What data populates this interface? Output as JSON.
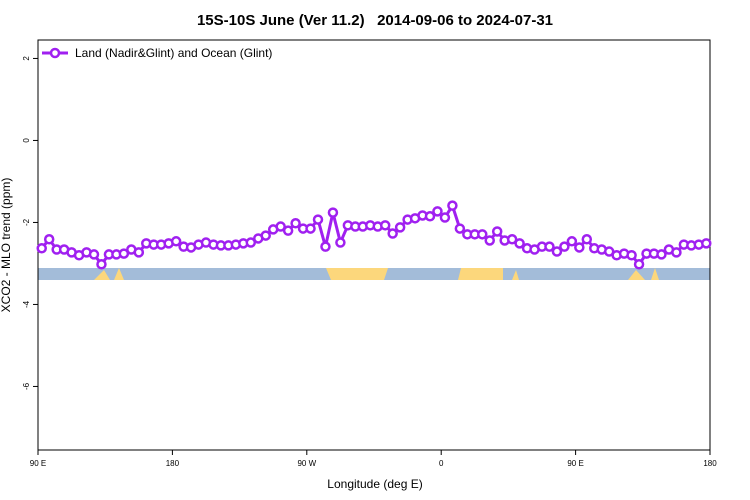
{
  "chart_data": {
    "type": "line",
    "title": "15S-10S June (Ver 11.2)   2014-09-06 to 2024-07-31",
    "xlabel": "Longitude (deg E)",
    "ylabel": "XCO2 - MLO trend (ppm)",
    "xlim": [
      90,
      540
    ],
    "ylim": [
      -7.55,
      2.45
    ],
    "xticks": [
      {
        "value": 90,
        "label": "90 E"
      },
      180,
      {
        "value": 270,
        "label": "90 W"
      },
      {
        "value": 360,
        "label": "0"
      },
      {
        "value": 450,
        "label": "90 E"
      },
      {
        "value": 540,
        "label": "180"
      }
    ],
    "yticks": [
      2,
      0,
      -2,
      -4,
      -6
    ],
    "legend": "top-left",
    "x": [
      92.5,
      97.5,
      102.5,
      107.5,
      112.5,
      117.5,
      122.5,
      127.5,
      132.5,
      137.5,
      142.5,
      147.5,
      152.5,
      157.5,
      162.5,
      167.5,
      172.5,
      177.5,
      182.5,
      187.5,
      192.5,
      197.5,
      202.5,
      207.5,
      212.5,
      217.5,
      222.5,
      227.5,
      232.5,
      237.5,
      242.5,
      247.5,
      252.5,
      257.5,
      262.5,
      267.5,
      272.5,
      277.5,
      282.5,
      287.5,
      292.5,
      297.5,
      302.5,
      307.5,
      312.5,
      317.5,
      322.5,
      327.5,
      332.5,
      337.5,
      342.5,
      347.5,
      352.5,
      357.5,
      362.5,
      367.5,
      372.5,
      377.5,
      382.5,
      387.5,
      392.5,
      397.5,
      402.5,
      407.5,
      412.5,
      417.5,
      422.5,
      427.5,
      432.5,
      437.5,
      442.5,
      447.5,
      452.5,
      457.5,
      462.5,
      467.5,
      472.5,
      477.5,
      482.5,
      487.5,
      492.5,
      497.5,
      502.5,
      507.5,
      512.5,
      517.5,
      522.5,
      527.5,
      532.5,
      537.5
    ],
    "series": [
      {
        "name": "Land (Nadir&Glint) and Ocean (Glint)",
        "color": "#a020f0",
        "values": [
          -2.63,
          -2.41,
          -2.66,
          -2.66,
          -2.73,
          -2.8,
          -2.73,
          -2.78,
          -3.02,
          -2.78,
          -2.78,
          -2.76,
          -2.66,
          -2.73,
          -2.51,
          -2.54,
          -2.54,
          -2.51,
          -2.46,
          -2.59,
          -2.61,
          -2.54,
          -2.49,
          -2.54,
          -2.56,
          -2.56,
          -2.54,
          -2.51,
          -2.49,
          -2.39,
          -2.32,
          -2.17,
          -2.1,
          -2.2,
          -2.02,
          -2.15,
          -2.15,
          -1.93,
          -2.59,
          -1.76,
          -2.49,
          -2.07,
          -2.1,
          -2.1,
          -2.07,
          -2.1,
          -2.07,
          -2.27,
          -2.12,
          -1.93,
          -1.9,
          -1.83,
          -1.85,
          -1.73,
          -1.88,
          -1.59,
          -2.15,
          -2.29,
          -2.29,
          -2.29,
          -2.44,
          -2.22,
          -2.44,
          -2.41,
          -2.51,
          -2.63,
          -2.66,
          -2.59,
          -2.59,
          -2.71,
          -2.59,
          -2.46,
          -2.61,
          -2.41,
          -2.63,
          -2.66,
          -2.71,
          -2.8,
          -2.76,
          -2.8,
          -3.02,
          -2.76,
          -2.76,
          -2.78,
          -2.66,
          -2.73,
          -2.54,
          -2.56,
          -2.54,
          -2.51
        ]
      }
    ]
  }
}
